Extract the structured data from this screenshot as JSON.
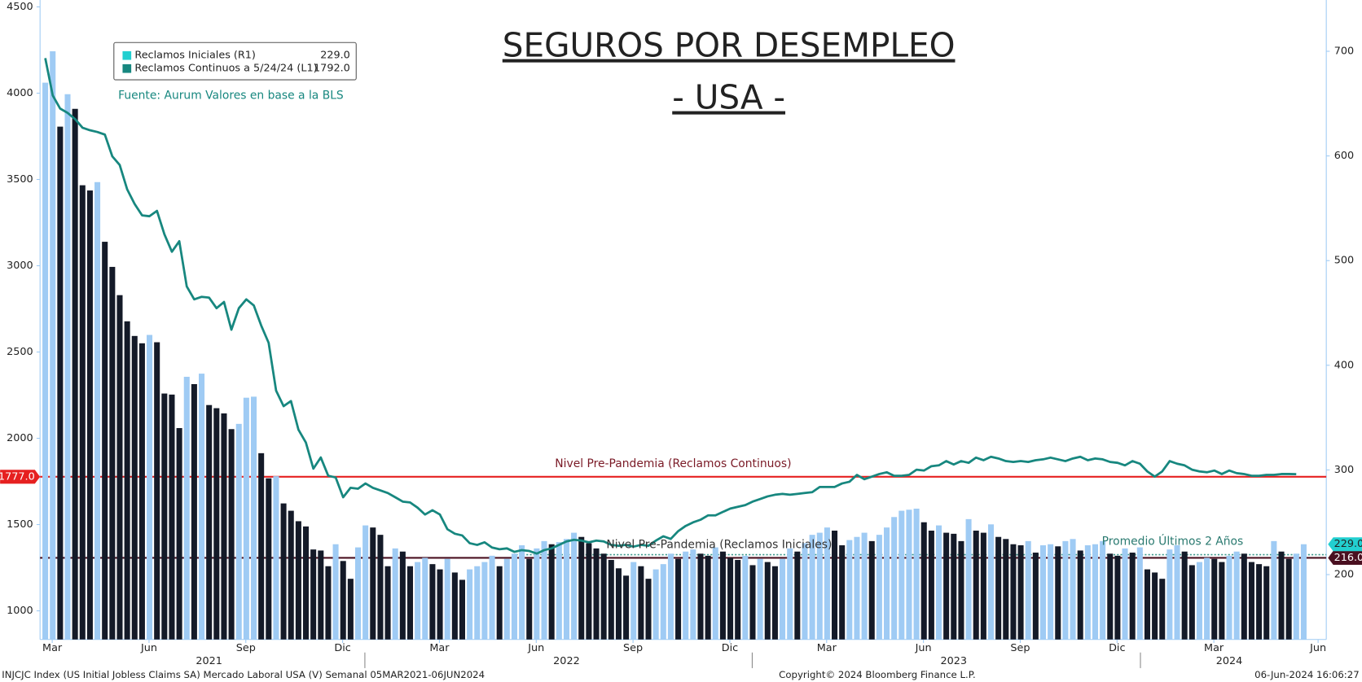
{
  "chart_data": {
    "type": "combo",
    "title": "SEGUROS POR DESEMPLEO",
    "subtitle": "- USA -",
    "source": "Fuente: Aurum Valores en base a la BLS",
    "footer_left": "INJCJC Index (US Initial Jobless Claims SA) Mercado Laboral USA (V)  Semanal 05MAR2021-06JUN2024",
    "footer_center": "Copyright© 2024 Bloomberg Finance L.P.",
    "footer_right": "06-Jun-2024 16:06:27",
    "categories": [
      null,
      null,
      null,
      null,
      null,
      null,
      null,
      null,
      null,
      null,
      null,
      null,
      null,
      null,
      null,
      null,
      null,
      null,
      null,
      null,
      null,
      null,
      null,
      null,
      null,
      null,
      null,
      null,
      null,
      null,
      null,
      null,
      null,
      null,
      null,
      null,
      null,
      null,
      null,
      null,
      null,
      null,
      null,
      null,
      null,
      null,
      null,
      null,
      null,
      null,
      null,
      null,
      null,
      null,
      null,
      null,
      null,
      null,
      null,
      null,
      null,
      null,
      null,
      null,
      null,
      null,
      null,
      null,
      null,
      null,
      null,
      null,
      null,
      null,
      null,
      null,
      null,
      null,
      null,
      null,
      null,
      null,
      null,
      null,
      null,
      null,
      null,
      null,
      null,
      null,
      null,
      null,
      null,
      null,
      null,
      null,
      null,
      null,
      null,
      null,
      null,
      null,
      null,
      null,
      null,
      null,
      null,
      null,
      null,
      null,
      null,
      null,
      null,
      null,
      null,
      null,
      null,
      null,
      null,
      null,
      null,
      null,
      null,
      null,
      null,
      null,
      null,
      null,
      null,
      null,
      null,
      null,
      null,
      null,
      null,
      null,
      null,
      null,
      null,
      null,
      null,
      null,
      null,
      null,
      null,
      null,
      null,
      null,
      null,
      null,
      null,
      null,
      null,
      null,
      null,
      null,
      null,
      null,
      null,
      null,
      null,
      null,
      null,
      null,
      null,
      null,
      null,
      null,
      null,
      null
    ],
    "xticks": [
      {
        "value": 0,
        "label": "Mar"
      },
      {
        "value": 13,
        "label": "Jun"
      },
      {
        "value": 26,
        "label": "Sep"
      },
      {
        "value": 39,
        "label": "Dic"
      },
      {
        "value": 52,
        "label": "Mar"
      },
      {
        "value": 65,
        "label": "Jun"
      },
      {
        "value": 78,
        "label": "Sep"
      },
      {
        "value": 91,
        "label": "Dic"
      },
      {
        "value": 104,
        "label": "Mar"
      },
      {
        "value": 117,
        "label": "Jun"
      },
      {
        "value": 130,
        "label": "Sep"
      },
      {
        "value": 143,
        "label": "Dic"
      },
      {
        "value": 156,
        "label": "Mar"
      },
      {
        "value": 170,
        "label": "Jun"
      }
    ],
    "xyears": [
      {
        "value": 22,
        "label": "2021"
      },
      {
        "value": 70,
        "label": "2022"
      },
      {
        "value": 122,
        "label": "2023"
      },
      {
        "value": 159,
        "label": "2024"
      }
    ],
    "ylim": [
      834,
      4540
    ],
    "yticks": [
      1000,
      1500,
      2000,
      2500,
      3000,
      3500,
      4000,
      4500
    ],
    "y2lim": [
      138,
      749
    ],
    "y2ticks": [
      200,
      300,
      400,
      500,
      600,
      700
    ],
    "series": [
      {
        "name": "Reclamos Iniciales (R1)",
        "type": "bar",
        "axis": "y2",
        "color": "#22cfd0",
        "up_color": "#9fcbf4",
        "down_color": "#141a28",
        "last_label": "229.0",
        "values": [
          670,
          700,
          628,
          659,
          645,
          572,
          567,
          575,
          518,
          494,
          467,
          442,
          428,
          421,
          429,
          422,
          373,
          372,
          340,
          389,
          382,
          392,
          362,
          359,
          354,
          339,
          344,
          369,
          370,
          316,
          292,
          294,
          268,
          261,
          251,
          246,
          224,
          223,
          208,
          229,
          213,
          196,
          226,
          247,
          245,
          238,
          208,
          225,
          222,
          208,
          212,
          216,
          210,
          205,
          215,
          202,
          195,
          205,
          208,
          212,
          218,
          208,
          215,
          220,
          228,
          215,
          225,
          232,
          229,
          231,
          234,
          240,
          236,
          230,
          225,
          220,
          214,
          206,
          199,
          212,
          208,
          196,
          205,
          210,
          220,
          215,
          222,
          224,
          220,
          218,
          226,
          222,
          216,
          214,
          218,
          209,
          215,
          212,
          208,
          215,
          225,
          222,
          230,
          238,
          240,
          245,
          242,
          228,
          233,
          236,
          240,
          232,
          238,
          245,
          255,
          261,
          262,
          263,
          250,
          242,
          247,
          240,
          239,
          232,
          253,
          242,
          240,
          248,
          236,
          234,
          229,
          228,
          232,
          221,
          228,
          229,
          227,
          232,
          234,
          223,
          228,
          229,
          232,
          220,
          218,
          225,
          221,
          226,
          205,
          202,
          196,
          224,
          228,
          222,
          209,
          212,
          216,
          215,
          212,
          218,
          222,
          220,
          212,
          210,
          208,
          232,
          222,
          215,
          220,
          229
        ]
      },
      {
        "name": "Reclamos Continuos a 5/24/24 (L1)",
        "type": "line",
        "axis": "y",
        "color": "#17877f",
        "last_label": "1792.0",
        "values": [
          4203,
          3987,
          3911,
          3886,
          3850,
          3800,
          3785,
          3775,
          3760,
          3634,
          3584,
          3443,
          3358,
          3292,
          3287,
          3318,
          3182,
          3081,
          3142,
          2880,
          2805,
          2820,
          2815,
          2754,
          2790,
          2629,
          2754,
          2805,
          2770,
          2654,
          2553,
          2276,
          2186,
          2216,
          2050,
          1975,
          1824,
          1889,
          1783,
          1773,
          1658,
          1713,
          1708,
          1738,
          1713,
          1698,
          1683,
          1658,
          1633,
          1628,
          1598,
          1558,
          1583,
          1558,
          1473,
          1447,
          1437,
          1392,
          1382,
          1397,
          1367,
          1357,
          1362,
          1342,
          1352,
          1347,
          1332,
          1352,
          1362,
          1382,
          1402,
          1412,
          1407,
          1397,
          1407,
          1402,
          1382,
          1377,
          1382,
          1372,
          1382,
          1377,
          1407,
          1432,
          1417,
          1462,
          1492,
          1513,
          1528,
          1553,
          1553,
          1573,
          1593,
          1603,
          1613,
          1633,
          1648,
          1663,
          1673,
          1678,
          1673,
          1678,
          1683,
          1688,
          1718,
          1718,
          1718,
          1738,
          1748,
          1788,
          1763,
          1778,
          1793,
          1803,
          1783,
          1783,
          1788,
          1818,
          1813,
          1838,
          1843,
          1868,
          1848,
          1868,
          1858,
          1888,
          1873,
          1893,
          1883,
          1868,
          1863,
          1868,
          1863,
          1873,
          1878,
          1888,
          1878,
          1868,
          1883,
          1893,
          1873,
          1883,
          1878,
          1863,
          1858,
          1843,
          1868,
          1853,
          1808,
          1778,
          1808,
          1868,
          1853,
          1843,
          1818,
          1808,
          1803,
          1813,
          1793,
          1813,
          1798,
          1793,
          1783,
          1783,
          1788,
          1788,
          1793,
          1793,
          1792,
          null
        ]
      }
    ],
    "reference_lines": [
      {
        "name": "Nivel Pre-Pandemia (Reclamos Continuos)",
        "axis": "y",
        "value": 1777,
        "value_label": "1777.0",
        "color": "#e62020"
      },
      {
        "name": "Nivel Pre-Pandemia (Reclamos Iniciales)",
        "axis": "y2",
        "value": 216,
        "value_label": "216.0",
        "color": "#4a1020"
      },
      {
        "name": "Promedio Últimos 2 Años",
        "axis": "y2",
        "value": 219,
        "color": "#3f9a8e",
        "dashed": true
      }
    ]
  }
}
